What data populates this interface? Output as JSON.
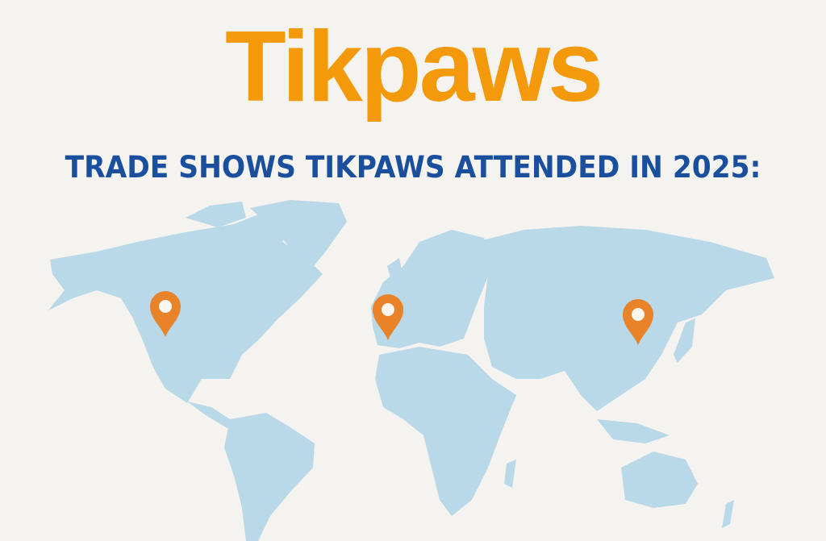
{
  "logo": {
    "text": "Tikpaws",
    "color": "#f49a0a"
  },
  "headline": "TRADE SHOWS TIKPAWS ATTENDED IN 2025:",
  "map": {
    "land_color": "#b9d8e8",
    "pin_color": "#e8832a",
    "pins": [
      {
        "region": "North America (western United States)"
      },
      {
        "region": "Europe (western Europe)"
      },
      {
        "region": "East Asia (China)"
      }
    ]
  }
}
